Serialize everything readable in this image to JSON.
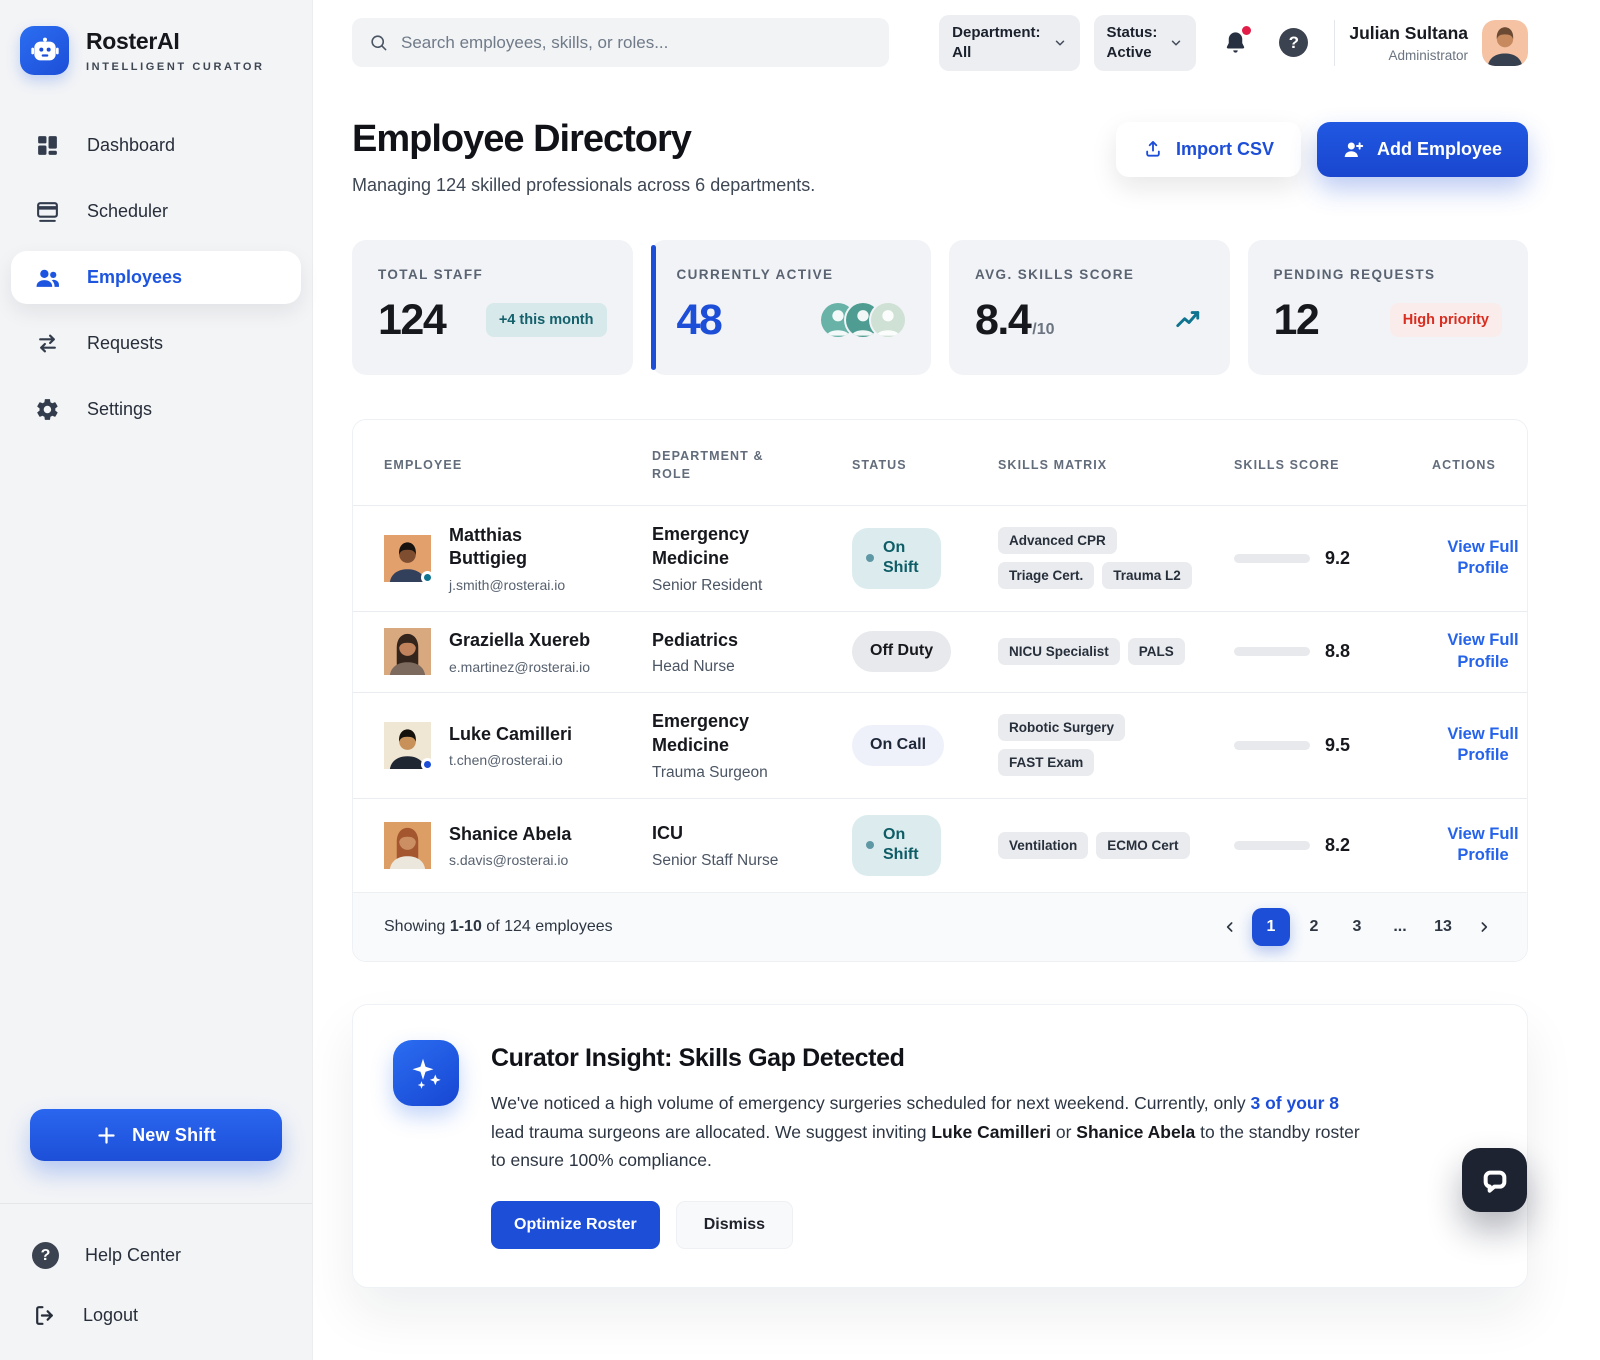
{
  "brand": {
    "name": "RosterAI",
    "tagline": "INTELLIGENT CURATOR"
  },
  "colors": {
    "primary": "#1d4ed8",
    "active_blue": "#2563eb",
    "teal": "#0e7490",
    "danger": "#d92d20"
  },
  "sidebar": {
    "items": [
      {
        "label": "Dashboard",
        "active": false
      },
      {
        "label": "Scheduler",
        "active": false
      },
      {
        "label": "Employees",
        "active": true
      },
      {
        "label": "Requests",
        "active": false
      },
      {
        "label": "Settings",
        "active": false
      }
    ],
    "new_shift_label": "New Shift",
    "footer": {
      "help": "Help Center",
      "logout": "Logout"
    }
  },
  "header": {
    "search_placeholder": "Search employees, skills, or roles...",
    "department_filter": {
      "label": "Department:",
      "value": "All"
    },
    "status_filter": {
      "label": "Status:",
      "value": "Active"
    },
    "user": {
      "name": "Julian Sultana",
      "role": "Administrator"
    },
    "user_avatar": {
      "bg": "#f5c3a3",
      "skin": "#c78a5e",
      "hair": "#6b4a33",
      "shirt": "#37404f"
    }
  },
  "page": {
    "title": "Employee Directory",
    "subtitle": "Managing 124 skilled professionals across 6 departments.",
    "import_label": "Import CSV",
    "add_label": "Add Employee"
  },
  "stats": [
    {
      "label": "TOTAL STAFF",
      "value": "124",
      "badge": "+4 this month"
    },
    {
      "label": "CURRENTLY ACTIVE",
      "value": "48",
      "avatars": [
        "#68b2a7",
        "#4f9d92",
        "#cfe0d4"
      ]
    },
    {
      "label": "AVG. SKILLS SCORE",
      "value": "8.4",
      "suffix": "/10"
    },
    {
      "label": "PENDING REQUESTS",
      "value": "12",
      "badge": "High priority"
    }
  ],
  "table": {
    "columns": [
      "EMPLOYEE",
      "DEPARTMENT & ROLE",
      "STATUS",
      "SKILLS MATRIX",
      "SKILLS SCORE",
      "ACTIONS"
    ],
    "rows": [
      {
        "name": "Matthias Buttigieg",
        "email": "j.smith@rosterai.io",
        "department": "Emergency Medicine",
        "role": "Senior Resident",
        "status": "On Shift",
        "status_type": "on-shift",
        "skills": [
          "Advanced CPR",
          "Triage Cert.",
          "Trauma L2"
        ],
        "score": 9.2,
        "action": "View Full Profile",
        "avatar": {
          "bg": "#e2a06d",
          "skin": "#7f4e30",
          "hair": "#171310",
          "shirt": "#33405c",
          "dot": "#0f7490",
          "long": false
        }
      },
      {
        "name": "Graziella Xuereb",
        "email": "e.martinez@rosterai.io",
        "department": "Pediatrics",
        "role": "Head Nurse",
        "status": "Off Duty",
        "status_type": "off-duty",
        "skills": [
          "NICU Specialist",
          "PALS"
        ],
        "score": 8.8,
        "action": "View Full Profile",
        "avatar": {
          "bg": "#d8a87f",
          "skin": "#c1835c",
          "hair": "#33241c",
          "shirt": "#7b6a5d",
          "dot": null,
          "long": true
        }
      },
      {
        "name": "Luke Camilleri",
        "email": "t.chen@rosterai.io",
        "department": "Emergency Medicine",
        "role": "Trauma Surgeon",
        "status": "On Call",
        "status_type": "on-call",
        "skills": [
          "Robotic Surgery",
          "FAST Exam"
        ],
        "score": 9.5,
        "action": "View Full Profile",
        "avatar": {
          "bg": "#efe6d4",
          "skin": "#c79159",
          "hair": "#14110d",
          "shirt": "#1f2733",
          "dot": "#1d4ed8",
          "long": false
        }
      },
      {
        "name": "Shanice Abela",
        "email": "s.davis@rosterai.io",
        "department": "ICU",
        "role": "Senior Staff Nurse",
        "status": "On Shift",
        "status_type": "on-shift",
        "skills": [
          "Ventilation",
          "ECMO Cert"
        ],
        "score": 8.2,
        "action": "View Full Profile",
        "avatar": {
          "bg": "#dd9e66",
          "skin": "#cb8f63",
          "hair": "#a4562f",
          "shirt": "#ece7dd",
          "dot": null,
          "long": true
        }
      }
    ],
    "footer": {
      "showing_prefix": "Showing ",
      "range": "1-10",
      "showing_suffix": " of 124 employees",
      "pagination": {
        "pages": [
          "1",
          "2",
          "3",
          "...",
          "13"
        ],
        "active": "1"
      }
    }
  },
  "insight": {
    "title": "Curator Insight: Skills Gap Detected",
    "segments": [
      {
        "text": "We've noticed a high volume of emergency surgeries scheduled for next weekend. Currently, only ",
        "style": "normal"
      },
      {
        "text": "3 of your 8",
        "style": "link"
      },
      {
        "text": " lead trauma surgeons are allocated. We suggest inviting ",
        "style": "normal"
      },
      {
        "text": "Luke Camilleri",
        "style": "bold"
      },
      {
        "text": " or ",
        "style": "normal"
      },
      {
        "text": "Shanice Abela",
        "style": "bold"
      },
      {
        "text": " to the standby roster to ensure 100% compliance.",
        "style": "normal"
      }
    ],
    "optimize_label": "Optimize Roster",
    "dismiss_label": "Dismiss"
  }
}
